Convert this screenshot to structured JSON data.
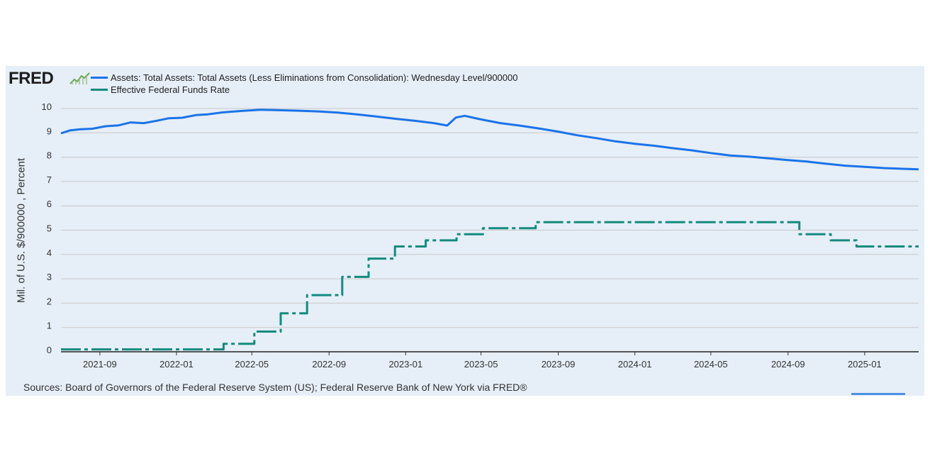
{
  "logo": {
    "text": "FRED",
    "icon": "fred-chart-icon"
  },
  "legend": [
    {
      "label": "Assets: Total Assets: Total Assets (Less Eliminations from Consolidation): Wednesday Level/900000",
      "color": "#1a73e8"
    },
    {
      "label": "Effective Federal Funds Rate",
      "color": "#138b7e"
    }
  ],
  "source": "Sources: Board of Governors of the Federal Reserve System (US); Federal Reserve Bank of New York via FRED®",
  "colors": {
    "panel": "#e6eef7",
    "grid": "#c8c8c8",
    "assets": "#1a73e8",
    "rate": "#138b7e"
  },
  "chart_data": {
    "type": "line",
    "xlabel": "",
    "ylabel": "Mil. of U.S. $/900000 , Percent",
    "ylim": [
      0,
      10
    ],
    "y_ticks": [
      0,
      1,
      2,
      3,
      4,
      5,
      6,
      7,
      8,
      9,
      10
    ],
    "xlim": [
      "2021-07-01",
      "2025-03-28"
    ],
    "x_ticks": [
      "2021-09",
      "2022-01",
      "2022-05",
      "2022-09",
      "2023-01",
      "2023-05",
      "2023-09",
      "2024-01",
      "2024-05",
      "2024-09",
      "2025-01"
    ],
    "grid": true,
    "legend_position": "top-left",
    "series": [
      {
        "name": "Assets: Total Assets: Total Assets (Less Eliminations from Consolidation): Wednesday Level/900000",
        "style": "solid",
        "points": [
          [
            "2021-07-01",
            8.98
          ],
          [
            "2021-07-15",
            9.1
          ],
          [
            "2021-08-01",
            9.15
          ],
          [
            "2021-08-20",
            9.17
          ],
          [
            "2021-09-10",
            9.27
          ],
          [
            "2021-10-01",
            9.31
          ],
          [
            "2021-10-20",
            9.43
          ],
          [
            "2021-11-10",
            9.4
          ],
          [
            "2021-12-01",
            9.5
          ],
          [
            "2021-12-20",
            9.6
          ],
          [
            "2022-01-10",
            9.62
          ],
          [
            "2022-02-01",
            9.73
          ],
          [
            "2022-02-20",
            9.76
          ],
          [
            "2022-03-15",
            9.84
          ],
          [
            "2022-04-15",
            9.9
          ],
          [
            "2022-05-15",
            9.95
          ],
          [
            "2022-06-15",
            9.93
          ],
          [
            "2022-07-15",
            9.91
          ],
          [
            "2022-08-15",
            9.88
          ],
          [
            "2022-09-15",
            9.83
          ],
          [
            "2022-10-15",
            9.76
          ],
          [
            "2022-11-15",
            9.67
          ],
          [
            "2022-12-15",
            9.58
          ],
          [
            "2023-01-15",
            9.5
          ],
          [
            "2023-02-15",
            9.4
          ],
          [
            "2023-03-08",
            9.3
          ],
          [
            "2023-03-22",
            9.63
          ],
          [
            "2023-04-05",
            9.7
          ],
          [
            "2023-05-01",
            9.55
          ],
          [
            "2023-06-01",
            9.4
          ],
          [
            "2023-07-01",
            9.3
          ],
          [
            "2023-08-01",
            9.18
          ],
          [
            "2023-09-01",
            9.05
          ],
          [
            "2023-10-01",
            8.9
          ],
          [
            "2023-11-01",
            8.78
          ],
          [
            "2023-12-01",
            8.65
          ],
          [
            "2024-01-01",
            8.55
          ],
          [
            "2024-02-01",
            8.47
          ],
          [
            "2024-03-01",
            8.37
          ],
          [
            "2024-04-01",
            8.28
          ],
          [
            "2024-05-01",
            8.17
          ],
          [
            "2024-06-01",
            8.07
          ],
          [
            "2024-07-01",
            8.02
          ],
          [
            "2024-08-01",
            7.95
          ],
          [
            "2024-09-01",
            7.88
          ],
          [
            "2024-10-01",
            7.82
          ],
          [
            "2024-11-01",
            7.73
          ],
          [
            "2024-12-01",
            7.65
          ],
          [
            "2025-01-01",
            7.6
          ],
          [
            "2025-02-01",
            7.55
          ],
          [
            "2025-03-28",
            7.5
          ]
        ]
      },
      {
        "name": "Effective Federal Funds Rate",
        "style": "dash-dot",
        "points": [
          [
            "2021-07-01",
            0.1
          ],
          [
            "2022-03-17",
            0.1
          ],
          [
            "2022-03-17",
            0.33
          ],
          [
            "2022-05-05",
            0.33
          ],
          [
            "2022-05-05",
            0.83
          ],
          [
            "2022-06-16",
            0.83
          ],
          [
            "2022-06-16",
            1.58
          ],
          [
            "2022-07-28",
            1.58
          ],
          [
            "2022-07-28",
            2.33
          ],
          [
            "2022-09-22",
            2.33
          ],
          [
            "2022-09-22",
            3.08
          ],
          [
            "2022-11-03",
            3.08
          ],
          [
            "2022-11-03",
            3.83
          ],
          [
            "2022-12-15",
            3.83
          ],
          [
            "2022-12-15",
            4.33
          ],
          [
            "2023-02-02",
            4.33
          ],
          [
            "2023-02-02",
            4.58
          ],
          [
            "2023-03-23",
            4.58
          ],
          [
            "2023-03-23",
            4.83
          ],
          [
            "2023-05-04",
            4.83
          ],
          [
            "2023-05-04",
            5.08
          ],
          [
            "2023-07-27",
            5.08
          ],
          [
            "2023-07-27",
            5.33
          ],
          [
            "2024-09-19",
            5.33
          ],
          [
            "2024-09-19",
            4.83
          ],
          [
            "2024-11-08",
            4.83
          ],
          [
            "2024-11-08",
            4.58
          ],
          [
            "2024-12-19",
            4.58
          ],
          [
            "2024-12-19",
            4.33
          ],
          [
            "2025-03-28",
            4.33
          ]
        ]
      }
    ]
  }
}
